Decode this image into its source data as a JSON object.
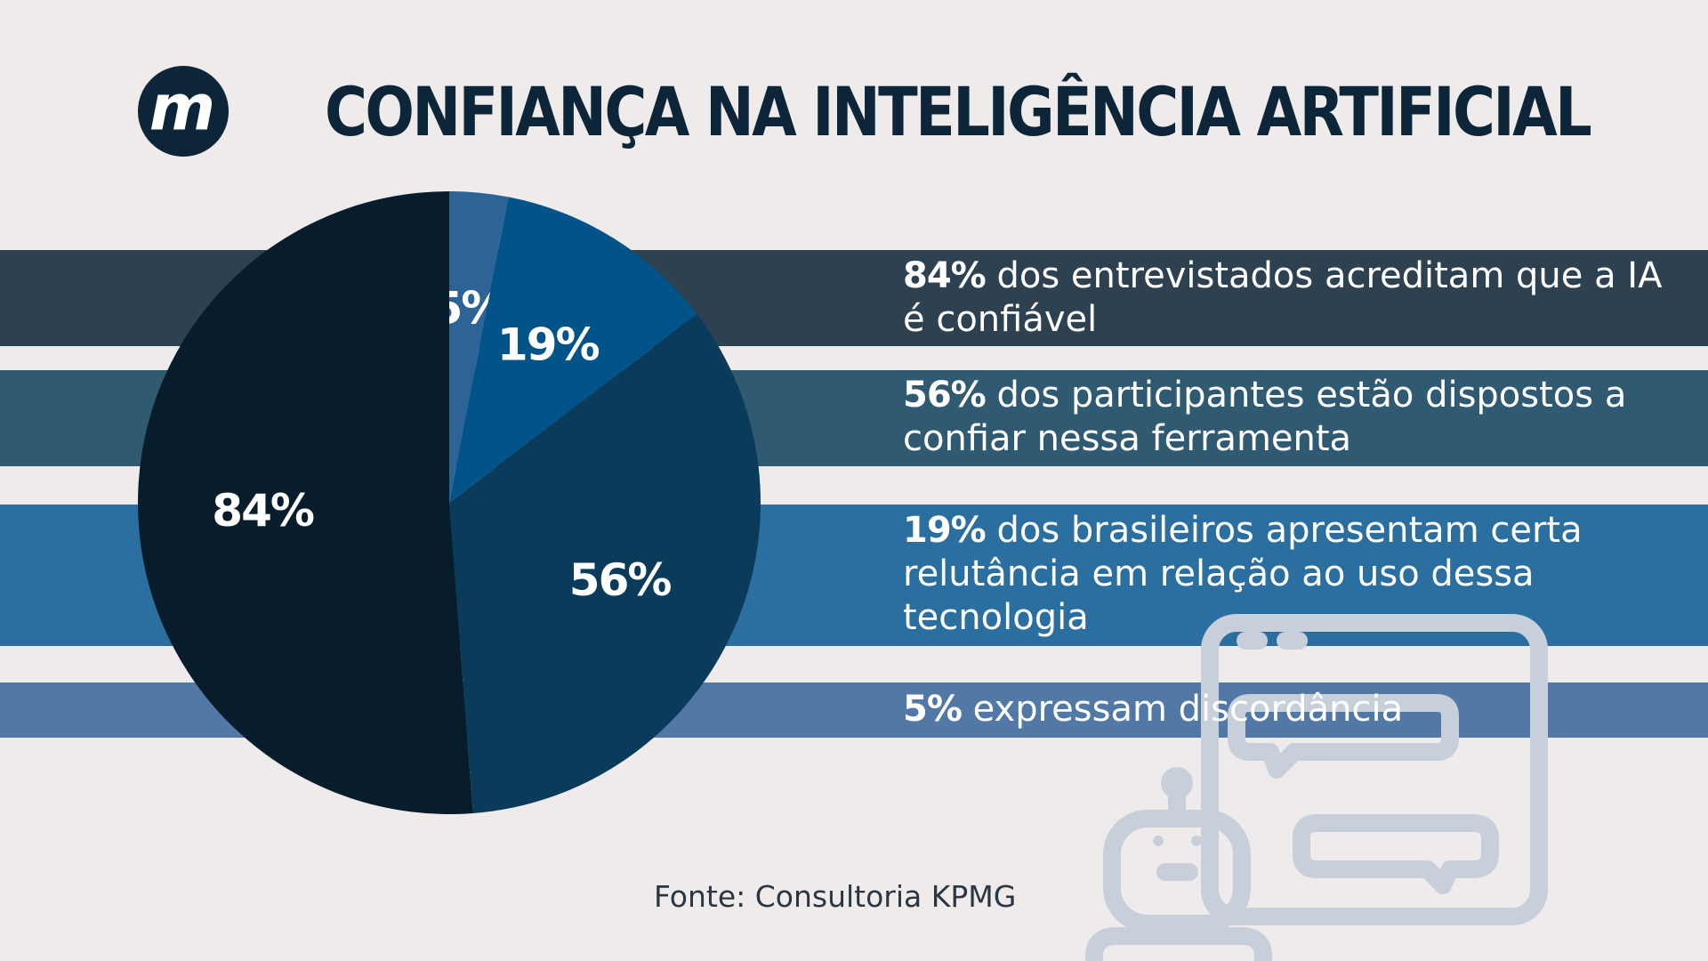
{
  "title": "CONFIANÇA NA INTELIGÊNCIA ARTIFICIAL",
  "logo": {
    "letter": "m",
    "icon": "m-logo-icon",
    "color": "#0c2538"
  },
  "statements": [
    {
      "pct": "84%",
      "text": " dos entrevistados acreditam que a IA é confiável",
      "band_color": "#2e4150"
    },
    {
      "pct": "56%",
      "text": " dos participantes estão dispostos a confiar nessa ferramenta",
      "band_color": "#305a72"
    },
    {
      "pct": "19%",
      "text": " dos brasileiros apresentam certa relutância em relação ao uso dessa tecnologia",
      "band_color": "#2a6f9f"
    },
    {
      "pct": "5%",
      "text": " expressam discordância",
      "band_color": "#5279a5"
    }
  ],
  "chart_data": {
    "type": "pie",
    "slices": [
      {
        "label": "5%",
        "value": 5,
        "color": "#2e6396"
      },
      {
        "label": "19%",
        "value": 19,
        "color": "#015389"
      },
      {
        "label": "56%",
        "value": 56,
        "color": "#0a3b5a"
      },
      {
        "label": "84%",
        "value": 84,
        "color": "#071d2c"
      }
    ]
  },
  "source": "Fonte: Consultoria KPMG",
  "decoration": {
    "icon": "robot-chat-icon",
    "color": "#c7cfda"
  }
}
